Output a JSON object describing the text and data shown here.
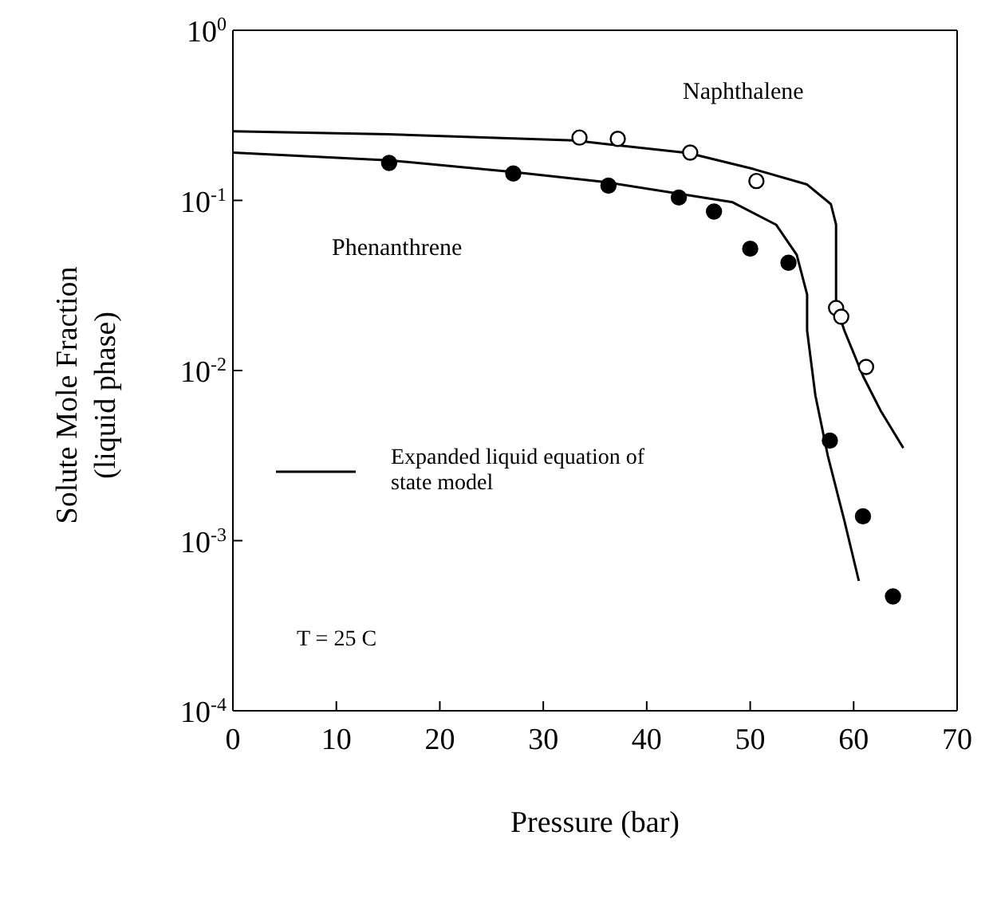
{
  "chart_data": {
    "type": "scatter",
    "xlabel": "Pressure (bar)",
    "ylabel": "Solute Mole Fraction\n(liquid phase)",
    "log": "y",
    "xlim": [
      0,
      70
    ],
    "xticks": [
      0,
      10,
      20,
      30,
      40,
      50,
      60,
      70
    ],
    "ylim": [
      0.0001,
      1
    ],
    "yticks": [
      {
        "value": 0.0001,
        "label": "10$^{-4}$"
      },
      {
        "value": 0.001,
        "label": "10$^{-3}$"
      },
      {
        "value": 0.01,
        "label": "10$^{-2}$"
      },
      {
        "value": 0.1,
        "label": "10$^{-1}$"
      },
      {
        "value": 1,
        "label": "10$^{0}$"
      }
    ],
    "grid": false,
    "legend": "left",
    "marker": "circle",
    "annotations": [
      "Naphthalene",
      "Phenanthrene",
      "T = 25 C"
    ],
    "series": [
      {
        "color": "#ffffff",
        "x": [
          33.5,
          37.2,
          44.2,
          50.6,
          58.3,
          58.8,
          61.2
        ],
        "values": [
          0.234,
          0.23,
          0.191,
          0.13,
          0.0233,
          0.0207,
          0.0105
        ]
      },
      {
        "color": "#000000",
        "x": [
          15.1,
          27.1,
          36.3,
          43.1,
          46.5,
          50.0,
          53.7,
          57.7,
          60.9,
          63.8
        ],
        "values": [
          0.166,
          0.144,
          0.122,
          0.104,
          0.086,
          0.052,
          0.043,
          0.00387,
          0.00139,
          0.00047
        ]
      },
      {
        "type": "line",
        "name": "Expanded liquid equation of state model",
        "color": "#000000",
        "marker": "none",
        "line_style": "solid",
        "x": [
          0,
          15,
          33,
          44,
          50.3,
          55.5,
          57.8,
          58.3,
          58.3,
          59.1,
          60.9,
          62.6,
          64.8
        ],
        "values": [
          0.255,
          0.245,
          0.225,
          0.19,
          0.153,
          0.124,
          0.095,
          0.072,
          0.0243,
          0.0172,
          0.0093,
          0.00582,
          0.0035
        ]
      },
      {
        "type": "line",
        "color": "#000000",
        "marker": "none",
        "line_style": "solid",
        "x": [
          0,
          15.1,
          27,
          36,
          48.3,
          52.5,
          54.5,
          55.5,
          55.5,
          56.3,
          57.5,
          59.1,
          60.5
        ],
        "values": [
          0.191,
          0.172,
          0.147,
          0.128,
          0.0975,
          0.072,
          0.0478,
          0.028,
          0.0172,
          0.00714,
          0.00316,
          0.00131,
          0.00058
        ]
      }
    ]
  }
}
